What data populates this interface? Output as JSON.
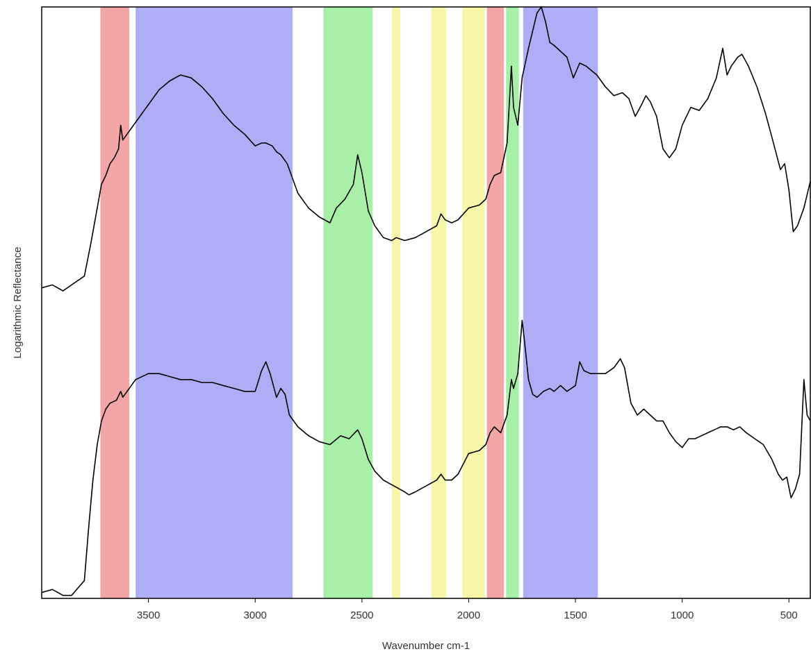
{
  "chart_data": {
    "type": "line",
    "title": "",
    "xlabel": "Wavenumber cm-1",
    "ylabel": "Logarithmic Reflectance",
    "xlim": [
      4000,
      400
    ],
    "x_reversed": true,
    "ylim": [
      0,
      1
    ],
    "y_ticks_shown": false,
    "grid": false,
    "legend": "none",
    "x_ticks": [
      3500,
      3000,
      2500,
      2000,
      1500,
      1000,
      500
    ],
    "x_tick_labels": [
      "3500",
      "3000",
      "2500",
      "2000",
      "1500",
      "1000",
      "500"
    ],
    "bands": [
      {
        "from": 3725,
        "to": 3590,
        "color": "#f4a6a6"
      },
      {
        "from": 3560,
        "to": 2825,
        "color": "#aeaef7"
      },
      {
        "from": 2680,
        "to": 2450,
        "color": "#a8f0a8"
      },
      {
        "from": 2360,
        "to": 2320,
        "color": "#f8f6a8"
      },
      {
        "from": 2175,
        "to": 2105,
        "color": "#f8f6a8"
      },
      {
        "from": 2030,
        "to": 1925,
        "color": "#f8f6a8"
      },
      {
        "from": 1915,
        "to": 1835,
        "color": "#f4a6a6"
      },
      {
        "from": 1825,
        "to": 1765,
        "color": "#a8f0a8"
      },
      {
        "from": 1745,
        "to": 1395,
        "color": "#aeaef7"
      }
    ],
    "series": [
      {
        "color": "#000000",
        "points": [
          [
            4000,
            0.525
          ],
          [
            3950,
            0.53
          ],
          [
            3900,
            0.52
          ],
          [
            3860,
            0.53
          ],
          [
            3800,
            0.545
          ],
          [
            3770,
            0.6
          ],
          [
            3740,
            0.66
          ],
          [
            3720,
            0.7
          ],
          [
            3700,
            0.715
          ],
          [
            3680,
            0.735
          ],
          [
            3660,
            0.745
          ],
          [
            3640,
            0.76
          ],
          [
            3630,
            0.8
          ],
          [
            3620,
            0.775
          ],
          [
            3600,
            0.785
          ],
          [
            3560,
            0.805
          ],
          [
            3500,
            0.835
          ],
          [
            3450,
            0.86
          ],
          [
            3400,
            0.875
          ],
          [
            3350,
            0.885
          ],
          [
            3300,
            0.88
          ],
          [
            3250,
            0.865
          ],
          [
            3200,
            0.845
          ],
          [
            3150,
            0.82
          ],
          [
            3100,
            0.8
          ],
          [
            3050,
            0.785
          ],
          [
            3000,
            0.765
          ],
          [
            2970,
            0.77
          ],
          [
            2950,
            0.77
          ],
          [
            2920,
            0.765
          ],
          [
            2900,
            0.755
          ],
          [
            2880,
            0.75
          ],
          [
            2850,
            0.735
          ],
          [
            2800,
            0.685
          ],
          [
            2750,
            0.66
          ],
          [
            2700,
            0.645
          ],
          [
            2650,
            0.635
          ],
          [
            2620,
            0.66
          ],
          [
            2580,
            0.675
          ],
          [
            2540,
            0.7
          ],
          [
            2520,
            0.75
          ],
          [
            2500,
            0.72
          ],
          [
            2470,
            0.655
          ],
          [
            2440,
            0.63
          ],
          [
            2400,
            0.61
          ],
          [
            2360,
            0.605
          ],
          [
            2340,
            0.61
          ],
          [
            2300,
            0.605
          ],
          [
            2250,
            0.61
          ],
          [
            2200,
            0.62
          ],
          [
            2150,
            0.63
          ],
          [
            2130,
            0.65
          ],
          [
            2110,
            0.64
          ],
          [
            2080,
            0.635
          ],
          [
            2050,
            0.64
          ],
          [
            2000,
            0.66
          ],
          [
            1950,
            0.665
          ],
          [
            1920,
            0.675
          ],
          [
            1900,
            0.7
          ],
          [
            1880,
            0.715
          ],
          [
            1850,
            0.72
          ],
          [
            1820,
            0.77
          ],
          [
            1800,
            0.9
          ],
          [
            1790,
            0.83
          ],
          [
            1770,
            0.8
          ],
          [
            1750,
            0.88
          ],
          [
            1720,
            0.93
          ],
          [
            1700,
            0.96
          ],
          [
            1680,
            0.99
          ],
          [
            1660,
            1.0
          ],
          [
            1640,
            0.975
          ],
          [
            1620,
            0.94
          ],
          [
            1600,
            0.935
          ],
          [
            1570,
            0.925
          ],
          [
            1540,
            0.915
          ],
          [
            1510,
            0.88
          ],
          [
            1480,
            0.905
          ],
          [
            1450,
            0.9
          ],
          [
            1400,
            0.885
          ],
          [
            1360,
            0.865
          ],
          [
            1320,
            0.85
          ],
          [
            1280,
            0.855
          ],
          [
            1250,
            0.845
          ],
          [
            1220,
            0.815
          ],
          [
            1190,
            0.835
          ],
          [
            1170,
            0.85
          ],
          [
            1150,
            0.84
          ],
          [
            1120,
            0.815
          ],
          [
            1090,
            0.76
          ],
          [
            1060,
            0.745
          ],
          [
            1030,
            0.76
          ],
          [
            1000,
            0.8
          ],
          [
            960,
            0.83
          ],
          [
            920,
            0.825
          ],
          [
            880,
            0.845
          ],
          [
            840,
            0.88
          ],
          [
            810,
            0.93
          ],
          [
            790,
            0.885
          ],
          [
            770,
            0.9
          ],
          [
            740,
            0.915
          ],
          [
            720,
            0.92
          ],
          [
            690,
            0.9
          ],
          [
            650,
            0.865
          ],
          [
            610,
            0.82
          ],
          [
            580,
            0.78
          ],
          [
            540,
            0.725
          ],
          [
            520,
            0.735
          ],
          [
            500,
            0.69
          ],
          [
            480,
            0.62
          ],
          [
            460,
            0.63
          ],
          [
            430,
            0.66
          ],
          [
            400,
            0.705
          ]
        ]
      },
      {
        "color": "#000000",
        "points": [
          [
            4000,
            0.01
          ],
          [
            3950,
            0.015
          ],
          [
            3900,
            0.005
          ],
          [
            3860,
            0.005
          ],
          [
            3800,
            0.03
          ],
          [
            3780,
            0.12
          ],
          [
            3760,
            0.2
          ],
          [
            3740,
            0.26
          ],
          [
            3720,
            0.3
          ],
          [
            3700,
            0.32
          ],
          [
            3680,
            0.33
          ],
          [
            3650,
            0.335
          ],
          [
            3630,
            0.35
          ],
          [
            3620,
            0.34
          ],
          [
            3600,
            0.35
          ],
          [
            3560,
            0.37
          ],
          [
            3500,
            0.38
          ],
          [
            3450,
            0.38
          ],
          [
            3400,
            0.375
          ],
          [
            3350,
            0.37
          ],
          [
            3300,
            0.37
          ],
          [
            3250,
            0.365
          ],
          [
            3200,
            0.365
          ],
          [
            3150,
            0.36
          ],
          [
            3100,
            0.355
          ],
          [
            3050,
            0.35
          ],
          [
            3000,
            0.35
          ],
          [
            2970,
            0.385
          ],
          [
            2950,
            0.4
          ],
          [
            2930,
            0.38
          ],
          [
            2900,
            0.34
          ],
          [
            2880,
            0.355
          ],
          [
            2860,
            0.345
          ],
          [
            2840,
            0.31
          ],
          [
            2800,
            0.29
          ],
          [
            2750,
            0.275
          ],
          [
            2700,
            0.265
          ],
          [
            2650,
            0.26
          ],
          [
            2600,
            0.275
          ],
          [
            2560,
            0.27
          ],
          [
            2520,
            0.285
          ],
          [
            2500,
            0.27
          ],
          [
            2470,
            0.235
          ],
          [
            2440,
            0.215
          ],
          [
            2400,
            0.2
          ],
          [
            2350,
            0.19
          ],
          [
            2300,
            0.18
          ],
          [
            2280,
            0.175
          ],
          [
            2250,
            0.18
          ],
          [
            2200,
            0.19
          ],
          [
            2150,
            0.2
          ],
          [
            2130,
            0.21
          ],
          [
            2110,
            0.2
          ],
          [
            2080,
            0.2
          ],
          [
            2050,
            0.21
          ],
          [
            2000,
            0.245
          ],
          [
            1950,
            0.25
          ],
          [
            1920,
            0.26
          ],
          [
            1900,
            0.28
          ],
          [
            1880,
            0.29
          ],
          [
            1850,
            0.28
          ],
          [
            1820,
            0.31
          ],
          [
            1800,
            0.37
          ],
          [
            1790,
            0.355
          ],
          [
            1770,
            0.38
          ],
          [
            1750,
            0.47
          ],
          [
            1740,
            0.44
          ],
          [
            1720,
            0.37
          ],
          [
            1700,
            0.345
          ],
          [
            1680,
            0.34
          ],
          [
            1650,
            0.35
          ],
          [
            1620,
            0.355
          ],
          [
            1600,
            0.35
          ],
          [
            1570,
            0.36
          ],
          [
            1540,
            0.35
          ],
          [
            1500,
            0.36
          ],
          [
            1480,
            0.4
          ],
          [
            1460,
            0.385
          ],
          [
            1430,
            0.38
          ],
          [
            1400,
            0.38
          ],
          [
            1360,
            0.38
          ],
          [
            1320,
            0.39
          ],
          [
            1290,
            0.405
          ],
          [
            1270,
            0.39
          ],
          [
            1240,
            0.33
          ],
          [
            1210,
            0.31
          ],
          [
            1180,
            0.32
          ],
          [
            1150,
            0.31
          ],
          [
            1120,
            0.3
          ],
          [
            1090,
            0.3
          ],
          [
            1060,
            0.28
          ],
          [
            1030,
            0.265
          ],
          [
            1000,
            0.255
          ],
          [
            970,
            0.27
          ],
          [
            940,
            0.27
          ],
          [
            910,
            0.275
          ],
          [
            880,
            0.28
          ],
          [
            850,
            0.285
          ],
          [
            820,
            0.29
          ],
          [
            790,
            0.29
          ],
          [
            760,
            0.285
          ],
          [
            730,
            0.29
          ],
          [
            700,
            0.28
          ],
          [
            660,
            0.27
          ],
          [
            620,
            0.26
          ],
          [
            580,
            0.235
          ],
          [
            550,
            0.21
          ],
          [
            530,
            0.2
          ],
          [
            510,
            0.205
          ],
          [
            490,
            0.17
          ],
          [
            470,
            0.185
          ],
          [
            450,
            0.21
          ],
          [
            430,
            0.37
          ],
          [
            415,
            0.31
          ],
          [
            400,
            0.3
          ]
        ]
      }
    ]
  }
}
